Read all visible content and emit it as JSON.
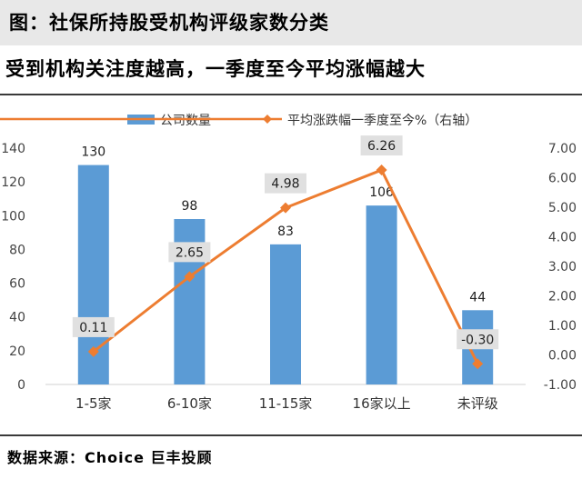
{
  "header": {
    "title": "图：社保所持股受机构评级家数分类"
  },
  "subtitle": "受到机构关注度越高，一季度至今平均涨幅越大",
  "source": "数据来源：Choice 巨丰投顾",
  "colors": {
    "bar": "#5b9bd5",
    "line": "#ed7d31",
    "label_box": "#e0e0e0"
  },
  "chart_data": {
    "type": "bar",
    "categories": [
      "1-5家",
      "6-10家",
      "11-15家",
      "16家以上",
      "未评级"
    ],
    "series": [
      {
        "name": "公司数量",
        "type": "bar",
        "axis": "left",
        "values": [
          130,
          98,
          83,
          106,
          44
        ],
        "value_labels": [
          "130",
          "98",
          "83",
          "106",
          "44"
        ]
      },
      {
        "name": "平均涨跌幅一季度至今%（右轴）",
        "type": "line",
        "axis": "right",
        "values": [
          0.11,
          2.65,
          4.98,
          6.26,
          -0.3
        ],
        "value_labels": [
          "0.11",
          "2.65",
          "4.98",
          "6.26",
          "-0.30"
        ]
      }
    ],
    "ylim_left": [
      0,
      140
    ],
    "yticks_left": [
      "0",
      "20",
      "40",
      "60",
      "80",
      "100",
      "120",
      "140"
    ],
    "ylim_right": [
      -1,
      7
    ],
    "yticks_right": [
      "-1.00",
      "0.00",
      "1.00",
      "2.00",
      "3.00",
      "4.00",
      "5.00",
      "6.00",
      "7.00"
    ],
    "legend": "top-center",
    "grid": false
  }
}
